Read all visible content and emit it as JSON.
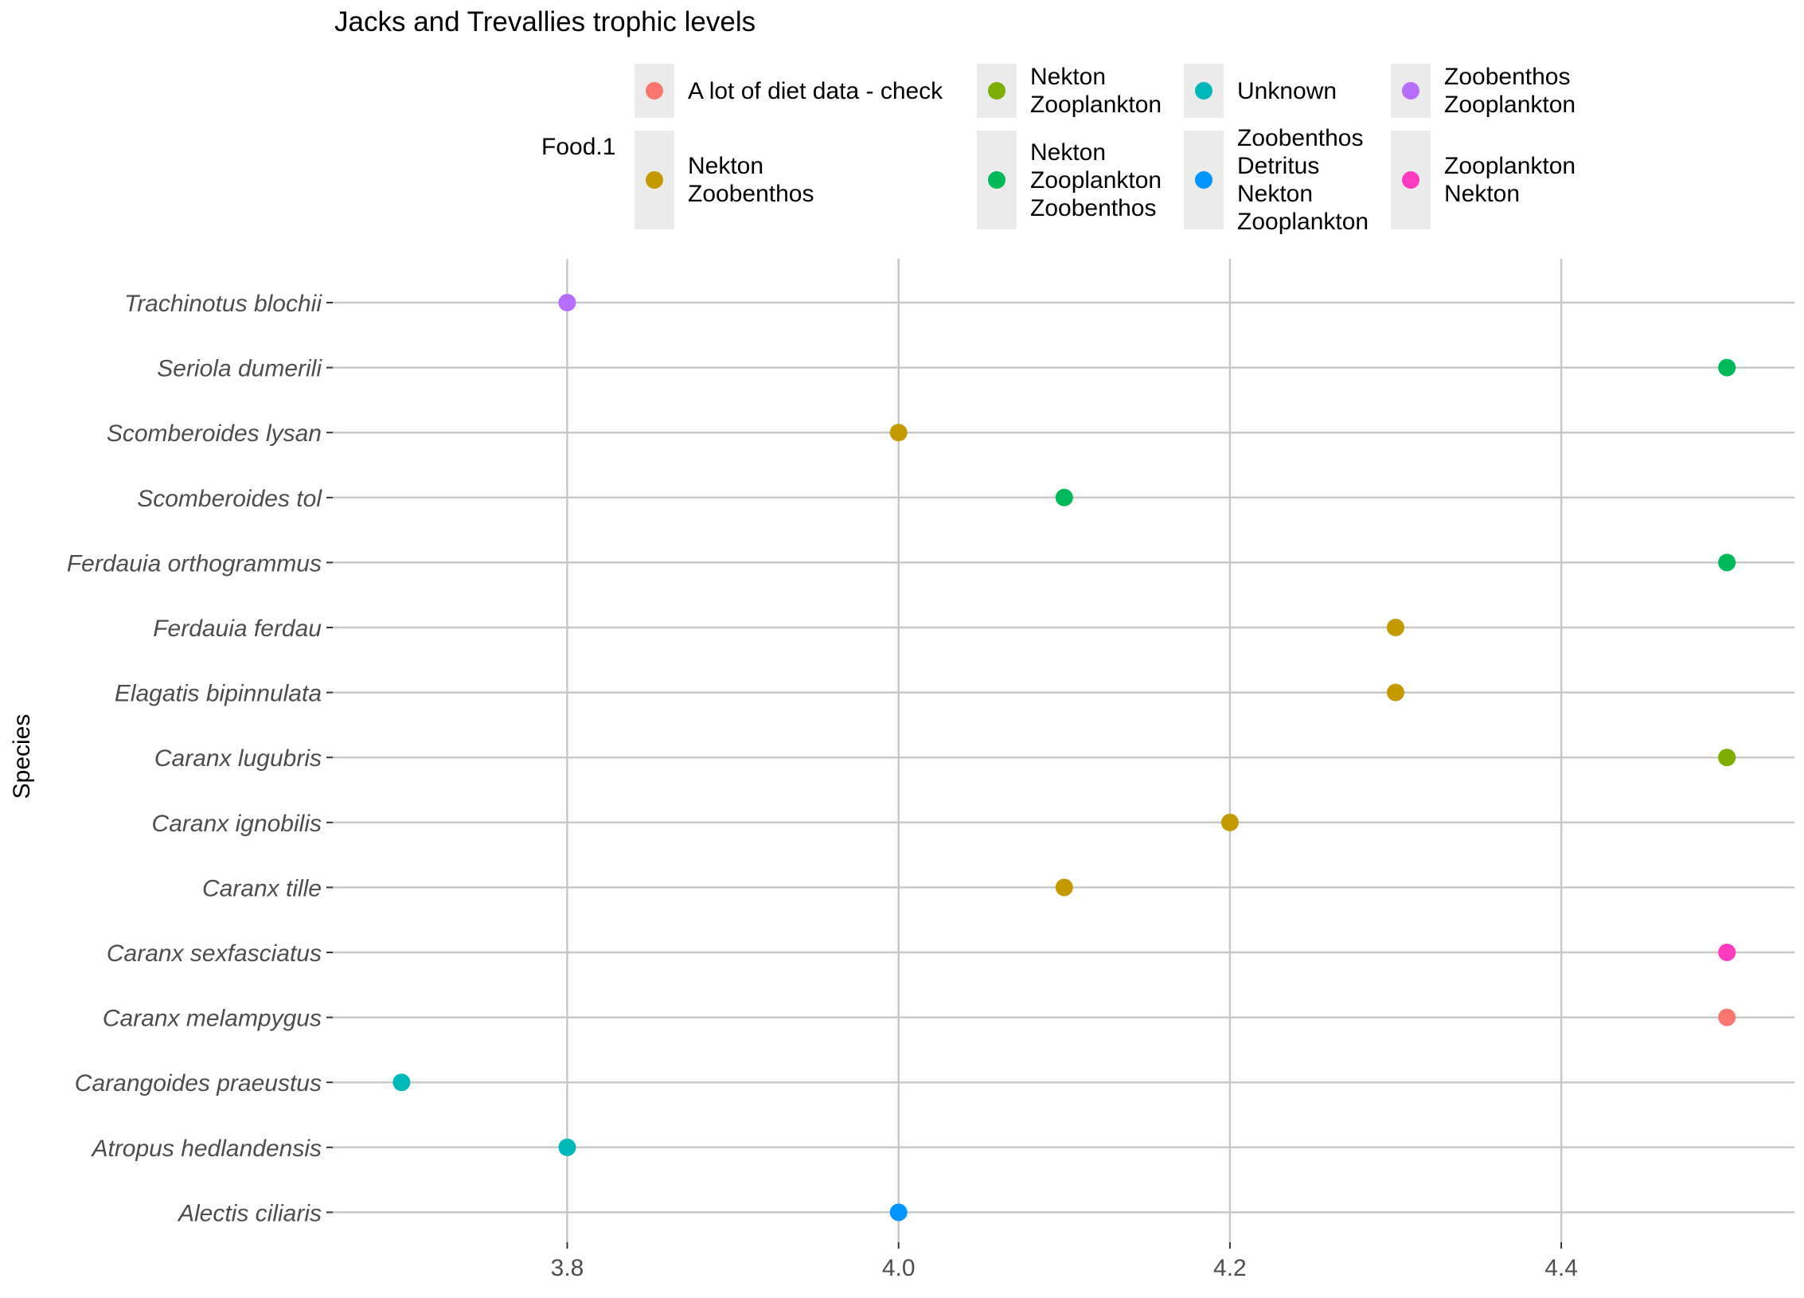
{
  "chart_data": {
    "type": "scatter",
    "title": "Jacks and Trevallies trophic levels",
    "xlabel": "",
    "ylabel": "Species",
    "xlim": [
      3.65,
      4.53
    ],
    "x_ticks": [
      "3.8",
      "4.0",
      "4.2",
      "4.4"
    ],
    "grid": true,
    "legend": {
      "title": "Food.1",
      "placement": "top",
      "entries": [
        {
          "label": "A lot of diet data - check",
          "color": "#F8766D"
        },
        {
          "label": "Nekton\nZoobenthos",
          "color": "#C49A00"
        },
        {
          "label": "Nekton\nZooplankton",
          "color": "#7CAE00"
        },
        {
          "label": "Nekton\nZooplankton\nZoobenthos",
          "color": "#00BA5A"
        },
        {
          "label": "Unknown",
          "color": "#00B8B8"
        },
        {
          "label": "Zoobenthos\nDetritus\nNekton\nZooplankton",
          "color": "#0095FF"
        },
        {
          "label": "Zoobenthos\nZooplankton",
          "color": "#B76EFF"
        },
        {
          "label": "Zooplankton\nNekton",
          "color": "#FF3BC0"
        }
      ]
    },
    "categories": [
      "Alectis  ciliaris",
      "Atropus  hedlandensis",
      "Carangoides  praeustus",
      "Caranx  melampygus",
      "Caranx  sexfasciatus",
      "Caranx  tille",
      "Caranx ignobilis",
      "Caranx lugubris",
      "Elagatis  bipinnulata",
      "Ferdauia  ferdau",
      "Ferdauia  orthogrammus",
      "Scomberoides  tol",
      "Scomberoides lysan",
      "Seriola  dumerili",
      "Trachinotus  blochii"
    ],
    "points": [
      {
        "species": "Alectis  ciliaris",
        "x": 4.0,
        "group": "Zoobenthos\nDetritus\nNekton\nZooplankton"
      },
      {
        "species": "Atropus  hedlandensis",
        "x": 3.8,
        "group": "Unknown"
      },
      {
        "species": "Carangoides  praeustus",
        "x": 3.7,
        "group": "Unknown"
      },
      {
        "species": "Caranx  melampygus",
        "x": 4.5,
        "group": "A lot of diet data - check"
      },
      {
        "species": "Caranx  sexfasciatus",
        "x": 4.5,
        "group": "Zooplankton\nNekton"
      },
      {
        "species": "Caranx  tille",
        "x": 4.1,
        "group": "Nekton\nZoobenthos"
      },
      {
        "species": "Caranx ignobilis",
        "x": 4.2,
        "group": "Nekton\nZoobenthos"
      },
      {
        "species": "Caranx lugubris",
        "x": 4.5,
        "group": "Nekton\nZooplankton"
      },
      {
        "species": "Elagatis  bipinnulata",
        "x": 4.3,
        "group": "Nekton\nZoobenthos"
      },
      {
        "species": "Ferdauia  ferdau",
        "x": 4.3,
        "group": "Nekton\nZoobenthos"
      },
      {
        "species": "Ferdauia  orthogrammus",
        "x": 4.5,
        "group": "Nekton\nZooplankton\nZoobenthos"
      },
      {
        "species": "Scomberoides  tol",
        "x": 4.1,
        "group": "Nekton\nZooplankton\nZoobenthos"
      },
      {
        "species": "Scomberoides lysan",
        "x": 4.0,
        "group": "Nekton\nZoobenthos"
      },
      {
        "species": "Seriola  dumerili",
        "x": 4.5,
        "group": "Nekton\nZooplankton\nZoobenthos"
      },
      {
        "species": "Trachinotus  blochii",
        "x": 3.8,
        "group": "Zoobenthos\nZooplankton"
      }
    ]
  }
}
